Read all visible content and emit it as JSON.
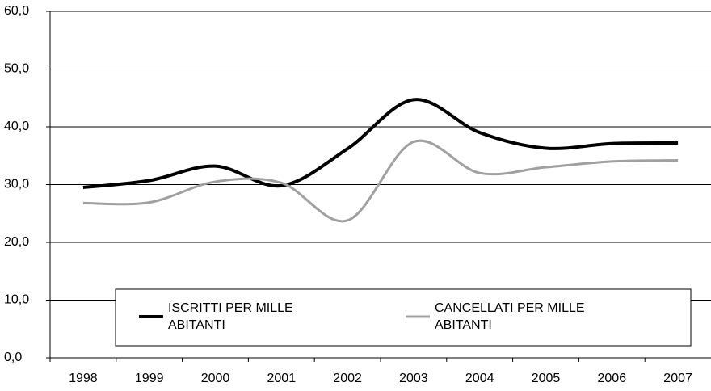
{
  "chart_data": {
    "type": "line",
    "categories": [
      "1998",
      "1999",
      "2000",
      "2001",
      "2002",
      "2003",
      "2004",
      "2005",
      "2006",
      "2007"
    ],
    "series": [
      {
        "name": "ISCRITTI PER MILLE ABITANTI",
        "color": "#000000",
        "values": [
          29.5,
          30.7,
          33.2,
          29.8,
          36.2,
          44.7,
          39.0,
          36.3,
          37.1,
          37.2
        ]
      },
      {
        "name": "CANCELLATI PER MILLE ABITANTI",
        "color": "#a0a0a0",
        "values": [
          26.8,
          26.9,
          30.5,
          30.3,
          23.8,
          37.4,
          32.0,
          33.0,
          34.0,
          34.2
        ]
      }
    ],
    "ylim": [
      0,
      60
    ],
    "yticks": [
      {
        "value": 0,
        "label": "0,0"
      },
      {
        "value": 10,
        "label": "10,0"
      },
      {
        "value": 20,
        "label": "20,0"
      },
      {
        "value": 30,
        "label": "30,0"
      },
      {
        "value": 40,
        "label": "40,0"
      },
      {
        "value": 50,
        "label": "50,0"
      },
      {
        "value": 60,
        "label": "60,0"
      }
    ],
    "grid": true,
    "legend": "bottom"
  }
}
